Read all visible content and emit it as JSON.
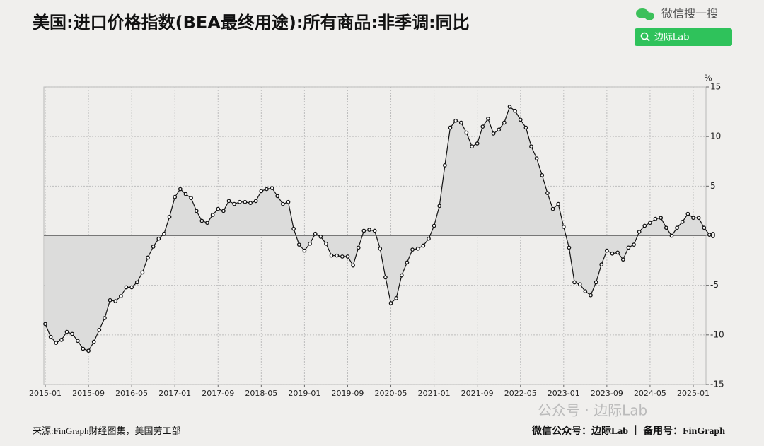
{
  "chart_data": {
    "type": "line",
    "title": "美国:进口价格指数(BEA最终用途):所有商品:非季调:同比",
    "unit": "%",
    "source": "来源:FinGraph财经图集，美国劳工部",
    "footer": "微信公众号：边际Lab ｜ 备用号：FinGraph",
    "x": [
      "2015-01",
      "2015-02",
      "2015-03",
      "2015-04",
      "2015-05",
      "2015-06",
      "2015-07",
      "2015-08",
      "2015-09",
      "2015-10",
      "2015-11",
      "2015-12",
      "2016-01",
      "2016-02",
      "2016-03",
      "2016-04",
      "2016-05",
      "2016-06",
      "2016-07",
      "2016-08",
      "2016-09",
      "2016-10",
      "2016-11",
      "2016-12",
      "2017-01",
      "2017-02",
      "2017-03",
      "2017-04",
      "2017-05",
      "2017-06",
      "2017-07",
      "2017-08",
      "2017-09",
      "2017-10",
      "2017-11",
      "2017-12",
      "2018-01",
      "2018-02",
      "2018-03",
      "2018-04",
      "2018-05",
      "2018-06",
      "2018-07",
      "2018-08",
      "2018-09",
      "2018-10",
      "2018-11",
      "2018-12",
      "2019-01",
      "2019-02",
      "2019-03",
      "2019-04",
      "2019-05",
      "2019-06",
      "2019-07",
      "2019-08",
      "2019-09",
      "2019-10",
      "2019-11",
      "2019-12",
      "2020-01",
      "2020-02",
      "2020-03",
      "2020-04",
      "2020-05",
      "2020-06",
      "2020-07",
      "2020-08",
      "2020-09",
      "2020-10",
      "2020-11",
      "2020-12",
      "2021-01",
      "2021-02",
      "2021-03",
      "2021-04",
      "2021-05",
      "2021-06",
      "2021-07",
      "2021-08",
      "2021-09",
      "2021-10",
      "2021-11",
      "2021-12",
      "2022-01",
      "2022-02",
      "2022-03",
      "2022-04",
      "2022-05",
      "2022-06",
      "2022-07",
      "2022-08",
      "2022-09",
      "2022-10",
      "2022-11",
      "2022-12",
      "2023-01",
      "2023-02",
      "2023-03",
      "2023-04",
      "2023-05",
      "2023-06",
      "2023-07",
      "2023-08",
      "2023-09",
      "2023-10",
      "2023-11",
      "2023-12",
      "2024-01",
      "2024-02",
      "2024-03",
      "2024-04",
      "2024-05",
      "2024-06",
      "2024-07",
      "2024-08",
      "2024-09",
      "2024-10",
      "2024-11",
      "2024-12",
      "2025-01",
      "2025-02",
      "2025-03",
      "2025-04"
    ],
    "series": [
      {
        "color": "#111111",
        "fill": "#dcdcdb",
        "values": [
          -8.9,
          -10.2,
          -10.8,
          -10.5,
          -9.7,
          -9.9,
          -10.6,
          -11.4,
          -11.6,
          -10.7,
          -9.5,
          -8.3,
          -6.5,
          -6.6,
          -6.1,
          -5.2,
          -5.2,
          -4.7,
          -3.7,
          -2.2,
          -1.1,
          -0.3,
          0.2,
          1.9,
          3.9,
          4.7,
          4.2,
          3.8,
          2.5,
          1.5,
          1.3,
          2.1,
          2.7,
          2.5,
          3.5,
          3.2,
          3.4,
          3.4,
          3.3,
          3.5,
          4.5,
          4.7,
          4.8,
          4.0,
          3.2,
          3.4,
          0.7,
          -0.9,
          -1.5,
          -0.8,
          0.2,
          -0.1,
          -0.8,
          -2.0,
          -2.0,
          -2.1,
          -2.1,
          -3.0,
          -1.2,
          0.5,
          0.6,
          0.5,
          -1.3,
          -4.2,
          -6.8,
          -6.3,
          -4.0,
          -2.7,
          -1.4,
          -1.3,
          -1.0,
          -0.3,
          1.0,
          3.0,
          7.1,
          10.9,
          11.6,
          11.4,
          10.4,
          9.0,
          9.3,
          11.0,
          11.8,
          10.3,
          10.7,
          11.4,
          13.0,
          12.6,
          11.7,
          10.9,
          9.0,
          7.8,
          6.1,
          4.3,
          2.7,
          3.2,
          0.9,
          -1.2,
          -4.7,
          -4.9,
          -5.6,
          -6.0,
          -4.7,
          -2.9,
          -1.5,
          -1.8,
          -1.7,
          -2.4,
          -1.2,
          -0.9,
          0.4,
          1.0,
          1.3,
          1.7,
          1.8,
          0.8,
          0.0,
          0.8,
          1.4,
          2.2,
          1.8,
          1.8,
          0.8,
          0.1
        ]
      }
    ],
    "xticks": [
      "2015-01",
      "2015-09",
      "2016-05",
      "2017-01",
      "2017-09",
      "2018-05",
      "2019-01",
      "2019-09",
      "2020-05",
      "2021-01",
      "2021-09",
      "2022-05",
      "2023-01",
      "2023-09",
      "2024-05",
      "2025-01"
    ],
    "ylim": [
      -15,
      15
    ],
    "yticks": [
      15,
      10,
      5,
      0,
      -5,
      -10,
      -15
    ],
    "grid": true
  },
  "branding": {
    "search": "微信搜一搜",
    "button": "边际Lab",
    "watermark": "公众号 · 边际Lab"
  }
}
